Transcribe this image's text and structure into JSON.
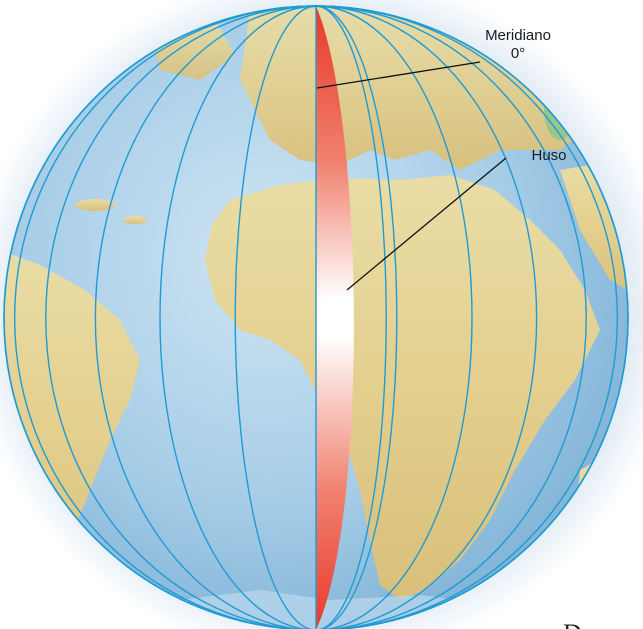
{
  "labels": {
    "meridian_line1": "Meridiano",
    "meridian_line2": "0°",
    "zone": "Huso"
  },
  "footer_fragment": "Dura",
  "colors": {
    "meridian_lines": "#1f9bd4",
    "zone_fill_edge": "#e8392a",
    "zone_fill_center": "#ffffff",
    "ocean": "#a9d0e9",
    "land": "#e6d59a",
    "leader_line": "#111111"
  }
}
